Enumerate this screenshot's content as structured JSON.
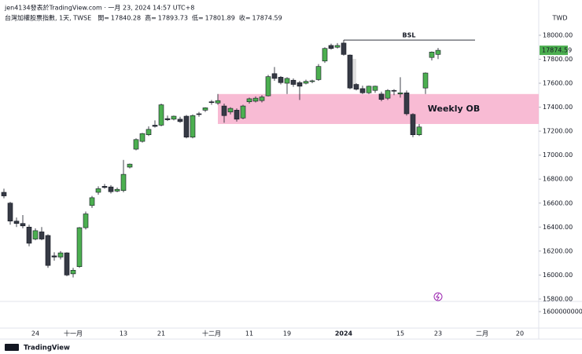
{
  "header": {
    "byline": "jen4134發表於TradingView.com · 一月 23, 2024 14:57 UTC+8",
    "symbol": "台灣加權股票指數, 1天, TWSE",
    "open_label": "開=",
    "high_label": "高=",
    "low_label": "低=",
    "close_label": "收="
  },
  "footer": {
    "brand": "TradingView"
  },
  "chart_data": {
    "type": "candlestick",
    "currency": "TWD",
    "categories": [
      null,
      null,
      null,
      null,
      null,
      "24",
      null,
      null,
      null,
      null,
      null,
      "十一月",
      null,
      null,
      null,
      null,
      null,
      null,
      null,
      "13",
      null,
      null,
      null,
      null,
      null,
      "21",
      null,
      null,
      null,
      null,
      null,
      null,
      null,
      "十二月",
      null,
      null,
      null,
      null,
      null,
      "11",
      null,
      null,
      null,
      null,
      null,
      "19",
      null,
      null,
      null,
      null,
      null,
      null,
      null,
      null,
      "2024",
      null,
      null,
      null,
      null,
      null,
      null,
      null,
      null,
      "15",
      null,
      null,
      null,
      null,
      null,
      "23",
      null,
      null,
      null,
      null,
      null,
      null,
      "二月",
      null,
      null,
      null,
      null,
      null,
      "20"
    ],
    "open": [
      16690,
      16600,
      16450,
      16430,
      16400,
      16300,
      16360,
      16330,
      16160,
      16150,
      16185,
      16010,
      16070,
      16395,
      16580,
      16690,
      16740,
      16735,
      16700,
      16705,
      16900,
      17050,
      17115,
      17170,
      17250,
      17250,
      17305,
      17300,
      17300,
      17325,
      17150,
      17345,
      17375,
      17445,
      17435,
      17410,
      17360,
      17375,
      17310,
      17445,
      17450,
      17455,
      17495,
      17680,
      17650,
      17600,
      17625,
      17605,
      17600,
      17615,
      17630,
      17785,
      17915,
      17900,
      17935,
      17835,
      17590,
      17555,
      17520,
      17540,
      17510,
      17475,
      17540,
      17510,
      17520,
      17340,
      17170,
      17560,
      17815,
      17840.28,
      null,
      null,
      null,
      null,
      null,
      null,
      null,
      null,
      null,
      null,
      null,
      null,
      null
    ],
    "high": [
      16720,
      16610,
      16480,
      16500,
      16420,
      16390,
      16400,
      16340,
      16190,
      16200,
      16190,
      16060,
      16400,
      16530,
      16660,
      16740,
      16760,
      16750,
      16730,
      16960,
      16930,
      17140,
      17185,
      17240,
      17290,
      17430,
      17330,
      17330,
      17320,
      17335,
      17340,
      17360,
      17400,
      17460,
      17510,
      17430,
      17400,
      17390,
      17420,
      17480,
      17490,
      17500,
      17670,
      17735,
      17660,
      17650,
      17640,
      17620,
      17630,
      17630,
      17760,
      17900,
      17930,
      17935,
      17960,
      17840,
      17600,
      17580,
      17580,
      17580,
      17530,
      17550,
      17550,
      17650,
      17540,
      17350,
      17260,
      17690,
      17865,
      17893.73,
      null,
      null,
      null,
      null,
      null,
      null,
      null,
      null,
      null,
      null,
      null,
      null,
      null
    ],
    "low": [
      16640,
      16420,
      16400,
      16390,
      16240,
      16290,
      16290,
      16060,
      16120,
      16130,
      15990,
      15980,
      16060,
      16380,
      16560,
      16670,
      16720,
      16680,
      16690,
      16690,
      16890,
      17040,
      17105,
      17160,
      17230,
      17240,
      17285,
      17290,
      17270,
      17140,
      17140,
      17320,
      17360,
      17420,
      17420,
      17270,
      17340,
      17280,
      17300,
      17430,
      17440,
      17440,
      17490,
      17620,
      17590,
      17510,
      17570,
      17460,
      17590,
      17600,
      17620,
      17770,
      17880,
      17890,
      17830,
      17550,
      17540,
      17510,
      17510,
      17520,
      17450,
      17460,
      17500,
      17480,
      17330,
      17150,
      17160,
      17510,
      17790,
      17801.89,
      null,
      null,
      null,
      null,
      null,
      null,
      null,
      null,
      null,
      null,
      null,
      null,
      null
    ],
    "close": [
      16660,
      16450,
      16430,
      16410,
      16265,
      16370,
      16300,
      16080,
      16150,
      16185,
      16000,
      16040,
      16395,
      16510,
      16645,
      16720,
      16730,
      16695,
      16715,
      16840,
      16925,
      17130,
      17180,
      17215,
      17240,
      17420,
      17295,
      17325,
      17280,
      17150,
      17330,
      17340,
      17395,
      17440,
      17455,
      17330,
      17390,
      17300,
      17410,
      17470,
      17475,
      17485,
      17655,
      17640,
      17605,
      17640,
      17590,
      17575,
      17615,
      17620,
      17740,
      17890,
      17890,
      17915,
      17840,
      17560,
      17550,
      17520,
      17575,
      17575,
      17465,
      17540,
      17535,
      17520,
      17345,
      17170,
      17235,
      17685,
      17860,
      17874.59,
      null,
      null,
      null,
      null,
      null,
      null,
      null,
      null,
      null,
      null,
      null,
      null,
      null
    ],
    "up_color": "#4caf50",
    "down_color": "#363a45",
    "ylim": [
      15780,
      18196
    ],
    "yticks": [
      {
        "value": 15800,
        "label": "15800.00"
      },
      {
        "value": 16000,
        "label": "16000.00"
      },
      {
        "value": 16200,
        "label": "16200.00"
      },
      {
        "value": 16400,
        "label": "16400.00"
      },
      {
        "value": 16600,
        "label": "16600.00"
      },
      {
        "value": 16800,
        "label": "16800.00"
      },
      {
        "value": 17000,
        "label": "17000.00"
      },
      {
        "value": 17200,
        "label": "17200.00"
      },
      {
        "value": 17400,
        "label": "17400.00"
      },
      {
        "value": 17600,
        "label": "17600.00"
      },
      {
        "value": 17800,
        "label": "17800.00"
      },
      {
        "value": 18000,
        "label": "18000.00"
      }
    ],
    "volume_yticks": [
      1600000000
    ],
    "zones": [
      {
        "label": "Weekly OB",
        "top": 17510,
        "bottom": 17260,
        "color": "#f8bbd4"
      }
    ],
    "levels": [
      {
        "label": "BSL",
        "value": 17960
      }
    ]
  }
}
